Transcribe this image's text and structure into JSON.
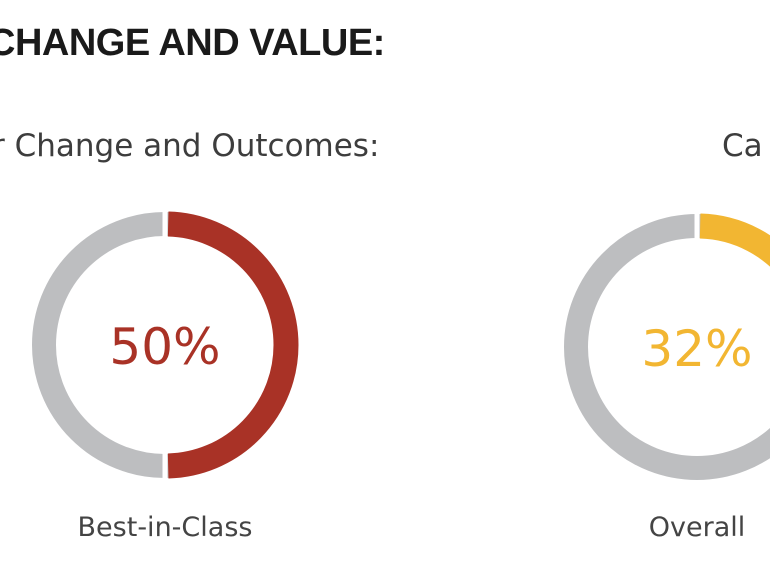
{
  "header": {
    "title": "CHANGE AND VALUE:"
  },
  "subheads": {
    "left": "r Change and Outcomes:",
    "right": "Ca"
  },
  "colors": {
    "track": "#bdbec0",
    "best_in_class": "#a93226",
    "overall": "#f2b632"
  },
  "chart_data": [
    {
      "type": "pie",
      "variant": "donut",
      "value_percent": 50,
      "label": "50%",
      "caption": "Best-in-Class",
      "color": "#a93226"
    },
    {
      "type": "pie",
      "variant": "donut",
      "value_percent": 32,
      "label": "32%",
      "caption": "Overall",
      "color": "#f2b632"
    }
  ]
}
